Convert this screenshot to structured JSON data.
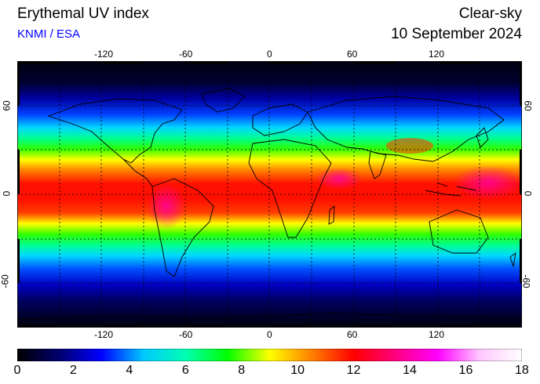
{
  "header": {
    "title": "Erythemal UV index",
    "source": "KNMI / ESA",
    "mode": "Clear-sky",
    "date": "10 September 2024"
  },
  "colors": {
    "source_text": "#0000ff"
  },
  "map": {
    "projection": "equirectangular",
    "longitude_ticks": [
      "-120",
      "-60",
      "0",
      "60",
      "120"
    ],
    "latitude_ticks": [
      "60",
      "0",
      "-60"
    ]
  },
  "colorbar": {
    "tick_labels": [
      "0",
      "2",
      "4",
      "6",
      "8",
      "10",
      "12",
      "14",
      "16",
      "18"
    ],
    "min": 0,
    "max": 18,
    "stops": [
      "#000000",
      "#00006e",
      "#0000ff",
      "#00c8ff",
      "#00ffb4",
      "#00ff00",
      "#ffff00",
      "#ff8000",
      "#ff0000",
      "#ff0080",
      "#ff00ff",
      "#ffc8ff",
      "#ffffff"
    ]
  }
}
